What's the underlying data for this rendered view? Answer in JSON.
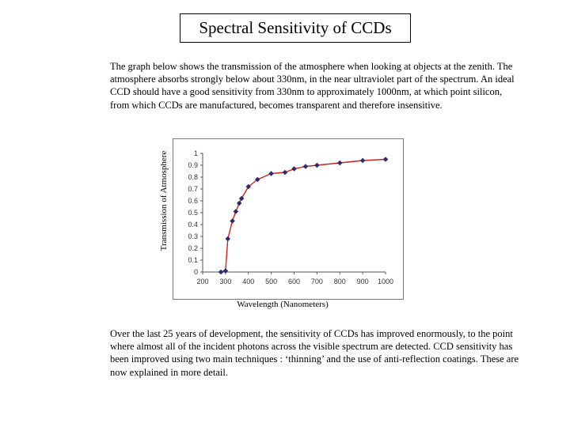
{
  "title": "Spectral Sensitivity of CCDs",
  "intro": "The graph below shows the transmission of the atmosphere when looking at objects at the zenith. The atmosphere absorbs strongly below about 330nm, in the near ultraviolet part of the spectrum. An ideal CCD should have a good sensitivity from 330nm to approximately 1000nm, at which point silicon, from which CCDs are manufactured,  becomes transparent and therefore insensitive.",
  "outro": "Over the last 25 years of development, the sensitivity of CCDs has improved enormously, to the point where almost all of the incident photons across the visible spectrum are detected. CCD sensitivity has been improved using two main techniques : ‘thinning’ and the use of anti-reflection coatings. These are now explained in more detail.",
  "colors": {
    "line": "#d02020",
    "marker": "#2e2a6e"
  },
  "chart_data": {
    "type": "line",
    "xlabel": "Wavelength (Nanometers)",
    "ylabel": "Transmission of Atmosphere",
    "xlim": [
      200,
      1000
    ],
    "ylim": [
      0,
      1
    ],
    "x_ticks": [
      "200",
      "300",
      "400",
      "500",
      "600",
      "700",
      "800",
      "900",
      "1000"
    ],
    "y_ticks": [
      "0",
      "0.1",
      "0.2",
      "0.3",
      "0.4",
      "0.5",
      "0.6",
      "0.7",
      "0.8",
      "0.9",
      "1"
    ],
    "grid": false,
    "x": [
      280,
      300,
      310,
      330,
      345,
      360,
      370,
      400,
      440,
      500,
      560,
      600,
      650,
      700,
      800,
      900,
      1000
    ],
    "values": [
      0.0,
      0.01,
      0.28,
      0.43,
      0.51,
      0.58,
      0.62,
      0.72,
      0.78,
      0.83,
      0.84,
      0.87,
      0.89,
      0.9,
      0.92,
      0.94,
      0.95
    ]
  }
}
